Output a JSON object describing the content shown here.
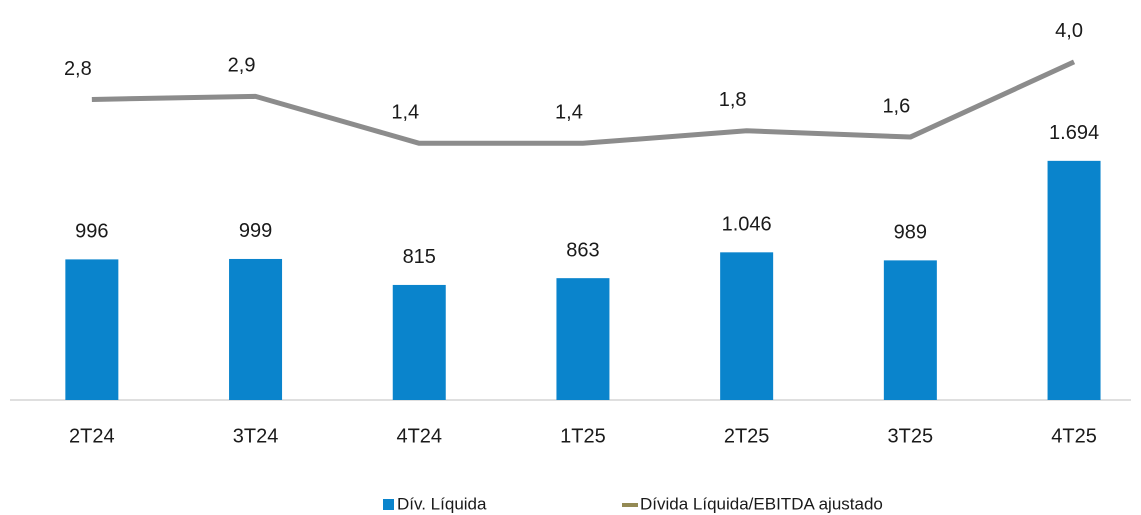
{
  "chart_data": {
    "type": "bar_line",
    "categories": [
      "2T24",
      "3T24",
      "4T24",
      "1T25",
      "2T25",
      "3T25",
      "4T25"
    ],
    "series": [
      {
        "name": "Dív. Líquida",
        "type": "bar",
        "color": "#0a84cc",
        "values": [
          996,
          999,
          815,
          863,
          1046,
          989,
          1694
        ],
        "value_labels": [
          "996",
          "999",
          "815",
          "863",
          "1.046",
          "989",
          "1.694"
        ]
      },
      {
        "name": "Dívida Líquida/EBITDA ajustado",
        "type": "line",
        "axis": "y2",
        "color": "#8c8c8c",
        "legend_color": "#948a54",
        "values": [
          2.8,
          2.9,
          1.4,
          1.4,
          1.8,
          1.6,
          4.0
        ],
        "value_labels": [
          "2,8",
          "2,9",
          "1,4",
          "1,4",
          "1,8",
          "1,6",
          "4,0"
        ]
      }
    ],
    "ylim": [
      0,
      2550
    ],
    "y2lim": [
      -6.8,
      4.7
    ],
    "legend": "bottom"
  }
}
